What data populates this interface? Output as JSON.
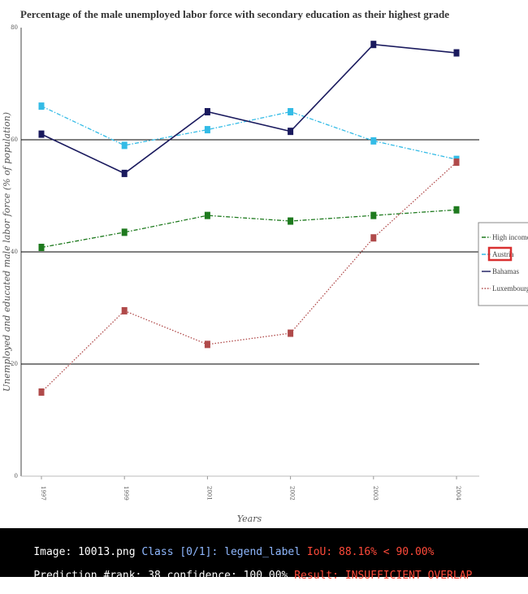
{
  "colors": {
    "high_income": "#1e7a1e",
    "austria": "#33bbe6",
    "bahamas": "#1a1a5e",
    "luxembourg": "#b04a4a",
    "highlight_box": "#d93030"
  },
  "chart_data": {
    "type": "line",
    "title": "Percentage of the male unemployed labor force with secondary education as their highest grade",
    "xlabel": "Years",
    "ylabel": "Unemployed and educated male labor force (% of population)",
    "categories": [
      "1997",
      "1999",
      "2001",
      "2002",
      "2003",
      "2004"
    ],
    "yticks": [
      "0",
      "20",
      "40",
      "60",
      "80"
    ],
    "ylim": [
      0,
      80
    ],
    "grid_y": true,
    "legend_position": "right",
    "series": [
      {
        "name": "High income",
        "style": "dash-dot",
        "color": "#1e7a1e",
        "values": [
          40.8,
          43.5,
          46.5,
          45.5,
          46.5,
          47.5
        ]
      },
      {
        "name": "Austria",
        "style": "dash-dot",
        "color": "#33bbe6",
        "values": [
          66.0,
          59.0,
          61.8,
          65.0,
          59.8,
          56.5
        ]
      },
      {
        "name": "Bahamas",
        "style": "solid",
        "color": "#1a1a5e",
        "values": [
          61.0,
          54.0,
          65.0,
          61.5,
          77.0,
          75.5
        ]
      },
      {
        "name": "Luxembourg",
        "style": "dotted",
        "color": "#b04a4a",
        "values": [
          15.0,
          29.5,
          23.5,
          25.5,
          42.5,
          56.0
        ]
      }
    ]
  },
  "legend": {
    "items": [
      "High income",
      "Austria",
      "Bahamas",
      "Luxembourg"
    ],
    "highlighted_index": 1
  },
  "info": {
    "image_label": "Image: ",
    "image_value": "10013.png",
    "class_label": "Class [0/1]: ",
    "class_value": "legend_label",
    "iou_text": "IoU: 88.16% < 90.00%",
    "prediction_text": "Prediction #rank: 38 confidence: 100.00%",
    "result_text": "Result: INSUFFICIENT OVERLAP"
  }
}
